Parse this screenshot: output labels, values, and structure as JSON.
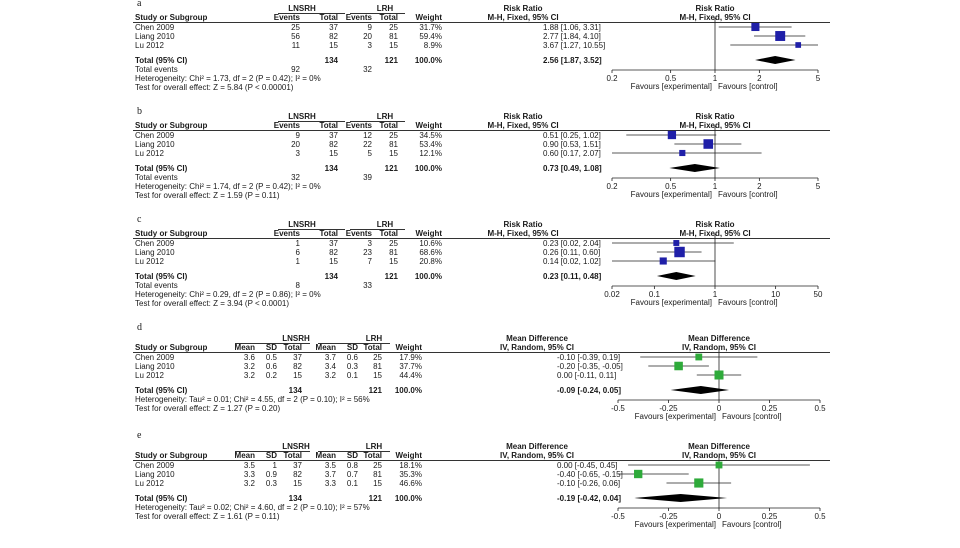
{
  "chart_data": [
    {
      "type": "forest",
      "letter": "a",
      "effect_type": "ratio",
      "marker_color": "#1f1fa8",
      "group1_name": "LNSRH",
      "group2_name": "LRH",
      "headers": {
        "study": "Study or Subgroup",
        "events1": "Events",
        "total1": "Total",
        "events2": "Events",
        "total2": "Total",
        "weight": "Weight",
        "effect": "Risk Ratio",
        "effect_sub": "M-H, Fixed, 95% CI",
        "plot_title": "Risk Ratio",
        "plot_sub": "M-H, Fixed, 95% CI"
      },
      "studies": [
        {
          "name": "Chen 2009",
          "cols": [
            "25",
            "37",
            "9",
            "25",
            "31.7%"
          ],
          "ci_text": "1.88 [1.06, 3.31]",
          "est": 1.88,
          "lo": 1.06,
          "hi": 3.31,
          "weight": 31.7
        },
        {
          "name": "Liang 2010",
          "cols": [
            "56",
            "82",
            "20",
            "81",
            "59.4%"
          ],
          "ci_text": "2.77 [1.84, 4.10]",
          "est": 2.77,
          "lo": 1.84,
          "hi": 4.1,
          "weight": 59.4
        },
        {
          "name": "Lu 2012",
          "cols": [
            "11",
            "15",
            "3",
            "15",
            "8.9%"
          ],
          "ci_text": "3.67 [1.27, 10.55]",
          "est": 3.67,
          "lo": 1.27,
          "hi": 10.55,
          "weight": 8.9
        }
      ],
      "total": {
        "label": "Total (95% CI)",
        "cols": [
          "",
          "134",
          "",
          "121",
          "100.0%"
        ],
        "ci_text": "2.56 [1.87, 3.52]",
        "est": 2.56,
        "lo": 1.87,
        "hi": 3.52
      },
      "total_events": {
        "label": "Total events",
        "g1": "92",
        "g2": "32"
      },
      "heterogeneity": "Heterogeneity: Chi² = 1.73, df = 2 (P = 0.42); I² = 0%",
      "overall": "Test for overall effect: Z = 5.84 (P < 0.00001)",
      "axis": {
        "scale": "log",
        "min": 0.2,
        "max": 5,
        "ticks": [
          0.2,
          0.5,
          1,
          2,
          5
        ],
        "tick_labels": [
          "0.2",
          "0.5",
          "1",
          "2",
          "5"
        ],
        "null": 1
      },
      "favours_left": "Favours [experimental]",
      "favours_right": "Favours [control]"
    },
    {
      "type": "forest",
      "letter": "b",
      "effect_type": "ratio",
      "marker_color": "#1f1fa8",
      "group1_name": "LNSRH",
      "group2_name": "LRH",
      "headers": {
        "study": "Study or Subgroup",
        "events1": "Events",
        "total1": "Total",
        "events2": "Events",
        "total2": "Total",
        "weight": "Weight",
        "effect": "Risk Ratio",
        "effect_sub": "M-H, Fixed, 95% CI",
        "plot_title": "Risk Ratio",
        "plot_sub": "M-H, Fixed, 95% CI"
      },
      "studies": [
        {
          "name": "Chen 2009",
          "cols": [
            "9",
            "37",
            "12",
            "25",
            "34.5%"
          ],
          "ci_text": "0.51 [0.25, 1.02]",
          "est": 0.51,
          "lo": 0.25,
          "hi": 1.02,
          "weight": 34.5
        },
        {
          "name": "Liang 2010",
          "cols": [
            "20",
            "82",
            "22",
            "81",
            "53.4%"
          ],
          "ci_text": "0.90 [0.53, 1.51]",
          "est": 0.9,
          "lo": 0.53,
          "hi": 1.51,
          "weight": 53.4
        },
        {
          "name": "Lu 2012",
          "cols": [
            "3",
            "15",
            "5",
            "15",
            "12.1%"
          ],
          "ci_text": "0.60 [0.17, 2.07]",
          "est": 0.6,
          "lo": 0.17,
          "hi": 2.07,
          "weight": 12.1
        }
      ],
      "total": {
        "label": "Total (95% CI)",
        "cols": [
          "",
          "134",
          "",
          "121",
          "100.0%"
        ],
        "ci_text": "0.73 [0.49, 1.08]",
        "est": 0.73,
        "lo": 0.49,
        "hi": 1.08
      },
      "total_events": {
        "label": "Total events",
        "g1": "32",
        "g2": "39"
      },
      "heterogeneity": "Heterogeneity: Chi² = 1.74, df = 2 (P = 0.42); I² = 0%",
      "overall": "Test for overall effect: Z = 1.59 (P = 0.11)",
      "axis": {
        "scale": "log",
        "min": 0.2,
        "max": 5,
        "ticks": [
          0.2,
          0.5,
          1,
          2,
          5
        ],
        "tick_labels": [
          "0.2",
          "0.5",
          "1",
          "2",
          "5"
        ],
        "null": 1
      },
      "favours_left": "Favours [experimental]",
      "favours_right": "Favours [control]"
    },
    {
      "type": "forest",
      "letter": "c",
      "effect_type": "ratio",
      "marker_color": "#1f1fa8",
      "group1_name": "LNSRH",
      "group2_name": "LRH",
      "headers": {
        "study": "Study or Subgroup",
        "events1": "Events",
        "total1": "Total",
        "events2": "Events",
        "total2": "Total",
        "weight": "Weight",
        "effect": "Risk Ratio",
        "effect_sub": "M-H, Fixed, 95% CI",
        "plot_title": "Risk Ratio",
        "plot_sub": "M-H, Fixed, 95% CI"
      },
      "studies": [
        {
          "name": "Chen 2009",
          "cols": [
            "1",
            "37",
            "3",
            "25",
            "10.6%"
          ],
          "ci_text": "0.23 [0.02, 2.04]",
          "est": 0.23,
          "lo": 0.02,
          "hi": 2.04,
          "weight": 10.6
        },
        {
          "name": "Liang 2010",
          "cols": [
            "6",
            "82",
            "23",
            "81",
            "68.6%"
          ],
          "ci_text": "0.26 [0.11, 0.60]",
          "est": 0.26,
          "lo": 0.11,
          "hi": 0.6,
          "weight": 68.6
        },
        {
          "name": "Lu 2012",
          "cols": [
            "1",
            "15",
            "7",
            "15",
            "20.8%"
          ],
          "ci_text": "0.14 [0.02, 1.02]",
          "est": 0.14,
          "lo": 0.02,
          "hi": 1.02,
          "weight": 20.8
        }
      ],
      "total": {
        "label": "Total (95% CI)",
        "cols": [
          "",
          "134",
          "",
          "121",
          "100.0%"
        ],
        "ci_text": "0.23 [0.11, 0.48]",
        "est": 0.23,
        "lo": 0.11,
        "hi": 0.48
      },
      "total_events": {
        "label": "Total events",
        "g1": "8",
        "g2": "33"
      },
      "heterogeneity": "Heterogeneity: Chi² = 0.29, df = 2 (P = 0.86); I² = 0%",
      "overall": "Test for overall effect: Z = 3.94 (P < 0.0001)",
      "axis": {
        "scale": "log",
        "min": 0.02,
        "max": 50,
        "ticks": [
          0.02,
          0.1,
          1,
          10,
          50
        ],
        "tick_labels": [
          "0.02",
          "0.1",
          "1",
          "10",
          "50"
        ],
        "null": 1
      },
      "favours_left": "Favours [experimental]",
      "favours_right": "Favours [control]"
    },
    {
      "type": "forest",
      "letter": "d",
      "effect_type": "diff",
      "marker_color": "#2eaa3a",
      "group1_name": "LNSRH",
      "group2_name": "LRH",
      "headers": {
        "study": "Study or Subgroup",
        "mean1": "Mean",
        "sd1": "SD",
        "total1": "Total",
        "mean2": "Mean",
        "sd2": "SD",
        "total2": "Total",
        "weight": "Weight",
        "effect": "Mean Difference",
        "effect_sub": "IV, Random, 95% CI",
        "plot_title": "Mean Difference",
        "plot_sub": "IV, Random, 95% CI"
      },
      "studies": [
        {
          "name": "Chen 2009",
          "cols": [
            "3.6",
            "0.5",
            "37",
            "3.7",
            "0.6",
            "25",
            "17.9%"
          ],
          "ci_text": "-0.10 [-0.39, 0.19]",
          "est": -0.1,
          "lo": -0.39,
          "hi": 0.19,
          "weight": 17.9
        },
        {
          "name": "Liang 2010",
          "cols": [
            "3.2",
            "0.6",
            "82",
            "3.4",
            "0.3",
            "81",
            "37.7%"
          ],
          "ci_text": "-0.20 [-0.35, -0.05]",
          "est": -0.2,
          "lo": -0.35,
          "hi": -0.05,
          "weight": 37.7
        },
        {
          "name": "Lu 2012",
          "cols": [
            "3.2",
            "0.2",
            "15",
            "3.2",
            "0.1",
            "15",
            "44.4%"
          ],
          "ci_text": "0.00 [-0.11, 0.11]",
          "est": 0.0,
          "lo": -0.11,
          "hi": 0.11,
          "weight": 44.4
        }
      ],
      "total": {
        "label": "Total (95% CI)",
        "cols": [
          "",
          "",
          "134",
          "",
          "",
          "121",
          "100.0%"
        ],
        "ci_text": "-0.09 [-0.24, 0.05]",
        "est": -0.09,
        "lo": -0.24,
        "hi": 0.05
      },
      "heterogeneity": "Heterogeneity: Tau² = 0.01; Chi² = 4.55, df = 2 (P = 0.10); I² = 56%",
      "overall": "Test for overall effect: Z = 1.27 (P = 0.20)",
      "axis": {
        "scale": "linear",
        "min": -0.5,
        "max": 0.5,
        "ticks": [
          -0.5,
          -0.25,
          0,
          0.25,
          0.5
        ],
        "tick_labels": [
          "-0.5",
          "-0.25",
          "0",
          "0.25",
          "0.5"
        ],
        "null": 0
      },
      "favours_left": "Favours [experimental]",
      "favours_right": "Favours [control]"
    },
    {
      "type": "forest",
      "letter": "e",
      "effect_type": "diff",
      "marker_color": "#2eaa3a",
      "group1_name": "LNSRH",
      "group2_name": "LRH",
      "headers": {
        "study": "Study or Subgroup",
        "mean1": "Mean",
        "sd1": "SD",
        "total1": "Total",
        "mean2": "Mean",
        "sd2": "SD",
        "total2": "Total",
        "weight": "Weight",
        "effect": "Mean Difference",
        "effect_sub": "IV, Random, 95% CI",
        "plot_title": "Mean Difference",
        "plot_sub": "IV, Random, 95% CI"
      },
      "studies": [
        {
          "name": "Chen 2009",
          "cols": [
            "3.5",
            "1",
            "37",
            "3.5",
            "0.8",
            "25",
            "18.1%"
          ],
          "ci_text": "0.00 [-0.45, 0.45]",
          "est": 0.0,
          "lo": -0.45,
          "hi": 0.45,
          "weight": 18.1
        },
        {
          "name": "Liang 2010",
          "cols": [
            "3.3",
            "0.9",
            "82",
            "3.7",
            "0.7",
            "81",
            "35.3%"
          ],
          "ci_text": "-0.40 [-0.65, -0.15]",
          "est": -0.4,
          "lo": -0.65,
          "hi": -0.15,
          "weight": 35.3
        },
        {
          "name": "Lu 2012",
          "cols": [
            "3.2",
            "0.3",
            "15",
            "3.3",
            "0.1",
            "15",
            "46.6%"
          ],
          "ci_text": "-0.10 [-0.26, 0.06]",
          "est": -0.1,
          "lo": -0.26,
          "hi": 0.06,
          "weight": 46.6
        }
      ],
      "total": {
        "label": "Total (95% CI)",
        "cols": [
          "",
          "",
          "134",
          "",
          "",
          "121",
          "100.0%"
        ],
        "ci_text": "-0.19 [-0.42, 0.04]",
        "est": -0.19,
        "lo": -0.42,
        "hi": 0.04
      },
      "heterogeneity": "Heterogeneity: Tau² = 0.02; Chi² = 4.60, df = 2 (P = 0.10); I² = 57%",
      "overall": "Test for overall effect: Z = 1.61 (P = 0.11)",
      "axis": {
        "scale": "linear",
        "min": -0.5,
        "max": 0.5,
        "ticks": [
          -0.5,
          -0.25,
          0,
          0.25,
          0.5
        ],
        "tick_labels": [
          "-0.5",
          "-0.25",
          "0",
          "0.25",
          "0.5"
        ],
        "null": 0
      },
      "favours_left": "Favours [experimental]",
      "favours_right": "Favours [control]"
    }
  ]
}
